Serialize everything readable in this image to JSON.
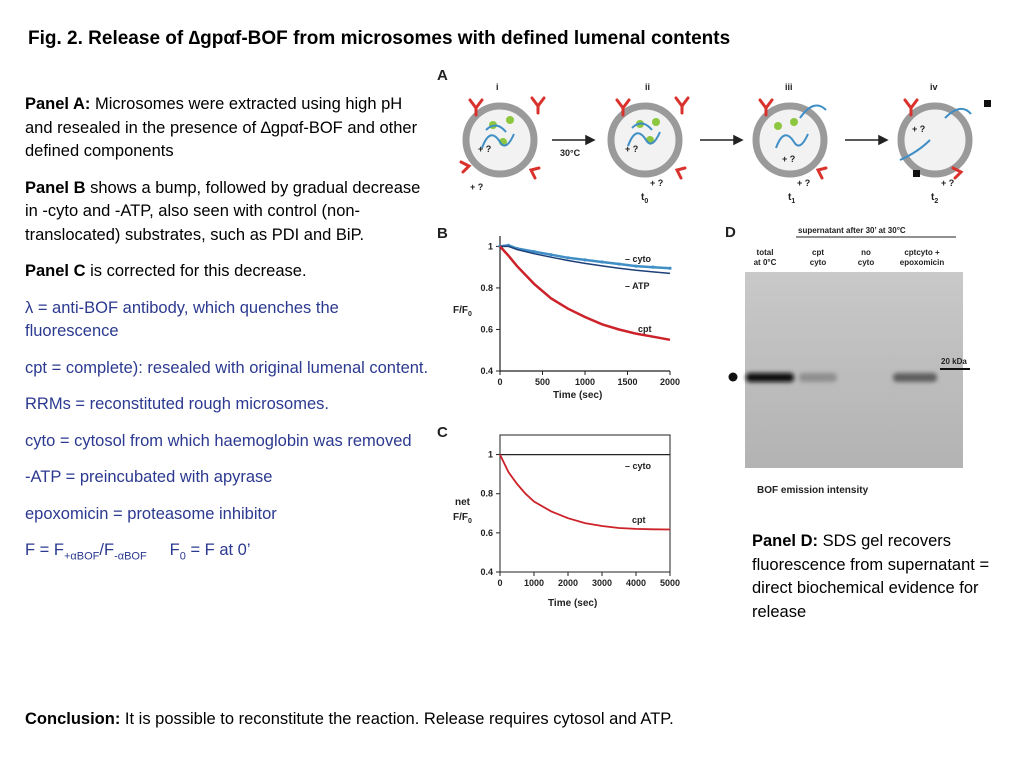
{
  "title": {
    "prefix": "Fig. 2. Release of ",
    "delta": "∆",
    "gp": "gp",
    "alpha": "α",
    "rest": "f-BOF from microsomes with defined lumenal contents"
  },
  "notes": {
    "panel_a_label": "Panel A:",
    "panel_a_text_1": " Microsomes were extracted using high pH and resealed in the presence of ",
    "panel_a_delta": "∆",
    "panel_a_gp": "gp",
    "panel_a_alpha": "α",
    "panel_a_text_2": "f-BOF and other defined components",
    "panel_b_label": "Panel B",
    "panel_b_text": " shows a bump, followed by gradual decrease in -cyto and -ATP, also seen with control (non-translocated) substrates, such as PDI and BiP.",
    "panel_c_label": "Panel C",
    "panel_c_text": " is corrected for this decrease.",
    "lambda_symbol": "λ",
    "lambda_text": " = anti-BOF antibody, which quenches the fluorescence",
    "cpt_def": "cpt = complete): resealed with original lumenal content.",
    "rrms_def": "RRMs = reconstituted rough microsomes.",
    "cyto_def": "cyto = cytosol from which haemoglobin was removed",
    "atp_def": "-ATP = preincubated with apyrase",
    "epox_def": "epoxomicin = proteasome inhibitor",
    "f_def": {
      "a": "F = F",
      "sub1a": "+",
      "sub1b": "α",
      "sub1c": "BOF",
      "b": "/F",
      "sub2a": "-",
      "sub2b": "α",
      "sub2c": "BOF",
      "c": "F",
      "sub3": "0",
      "d": " = F at 0’"
    }
  },
  "panel_d": {
    "label": "Panel D:",
    "text": " SDS gel recovers fluorescence from supernatant = direct biochemical evidence for release"
  },
  "conclusion": {
    "label": "Conclusion:",
    "text": " It is possible to reconstitute the reaction. Release requires cytosol and ATP."
  },
  "figure": {
    "panel_a": {
      "label": "A",
      "stages": [
        "i",
        "ii",
        "iii",
        "iv"
      ],
      "arrow_label": "30°C",
      "time_labels": [
        "t",
        "t",
        "t"
      ],
      "time_subs": [
        "0",
        "1",
        "2"
      ],
      "unknown_marks": [
        "+ ?",
        "+ ?",
        "+ ?",
        "+ ?",
        "+ ?",
        "+ ?",
        "+ ?",
        "+ ?"
      ]
    },
    "panel_b": {
      "label": "B"
    },
    "panel_c": {
      "label": "C"
    },
    "panel_d": {
      "label": "D",
      "header": "supernatant  after  30’  at  30°C",
      "lanes": [
        {
          "l1": "total",
          "l2": "at 0°C"
        },
        {
          "l1": "cpt",
          "l2": "cyto"
        },
        {
          "l1": "no",
          "l2": "cyto"
        },
        {
          "l1": "cptcyto +",
          "l2": "epoxomicin"
        }
      ],
      "marker": "20 kDa",
      "xlabel": "BOF  emission  intensity",
      "band_intensity": [
        1.0,
        0.3,
        0.0,
        0.55
      ]
    }
  },
  "chart_data": [
    {
      "type": "line",
      "panel": "B",
      "ylabel_main": "F/F",
      "ylabel_sub": "0",
      "xlabel": "Time (sec)",
      "xlim": [
        0,
        2000
      ],
      "ylim": [
        0.4,
        1.05
      ],
      "xticks": [
        0,
        500,
        1000,
        1500,
        2000
      ],
      "yticks": [
        0.4,
        0.6,
        0.8,
        1
      ],
      "ytick_labels": [
        "0.4",
        "0.6",
        "0.8",
        "1"
      ],
      "series": [
        {
          "name": "– cyto",
          "color": "#3f8ec6",
          "x": [
            0,
            100,
            200,
            400,
            600,
            800,
            1000,
            1200,
            1400,
            1600,
            1800,
            2000
          ],
          "y": [
            1.0,
            1.005,
            0.99,
            0.975,
            0.96,
            0.945,
            0.935,
            0.925,
            0.915,
            0.905,
            0.9,
            0.895
          ]
        },
        {
          "name": "– ATP",
          "color": "#1d3f7a",
          "x": [
            0,
            100,
            200,
            400,
            600,
            800,
            1000,
            1200,
            1400,
            1600,
            1800,
            2000
          ],
          "y": [
            1.0,
            1.0,
            0.985,
            0.965,
            0.948,
            0.932,
            0.918,
            0.906,
            0.895,
            0.885,
            0.877,
            0.87
          ]
        },
        {
          "name": "cpt",
          "color": "#cc2229",
          "x": [
            0,
            100,
            200,
            400,
            600,
            800,
            1000,
            1200,
            1400,
            1600,
            1800,
            2000
          ],
          "y": [
            1.0,
            0.955,
            0.905,
            0.82,
            0.75,
            0.7,
            0.66,
            0.625,
            0.6,
            0.58,
            0.565,
            0.55
          ]
        }
      ]
    },
    {
      "type": "line",
      "panel": "C",
      "ylabel_top": "net",
      "ylabel_main": "F/F",
      "ylabel_sub": "0",
      "xlabel": "Time (sec)",
      "xlim": [
        0,
        5000
      ],
      "ylim": [
        0.4,
        1.1
      ],
      "xticks": [
        0,
        1000,
        2000,
        3000,
        4000,
        5000
      ],
      "yticks": [
        0.4,
        0.6,
        0.8,
        1
      ],
      "ytick_labels": [
        "0.4",
        "0.6",
        "0.8",
        "1"
      ],
      "series": [
        {
          "name": "– cyto",
          "color": "#222222",
          "x": [
            0,
            5000
          ],
          "y": [
            1.0,
            1.0
          ]
        },
        {
          "name": "cpt",
          "color": "#cc2229",
          "x": [
            0,
            250,
            500,
            750,
            1000,
            1500,
            2000,
            2500,
            3000,
            3500,
            4000,
            4500,
            5000
          ],
          "y": [
            1.0,
            0.91,
            0.85,
            0.8,
            0.76,
            0.71,
            0.675,
            0.65,
            0.635,
            0.625,
            0.62,
            0.618,
            0.617
          ]
        }
      ]
    }
  ]
}
